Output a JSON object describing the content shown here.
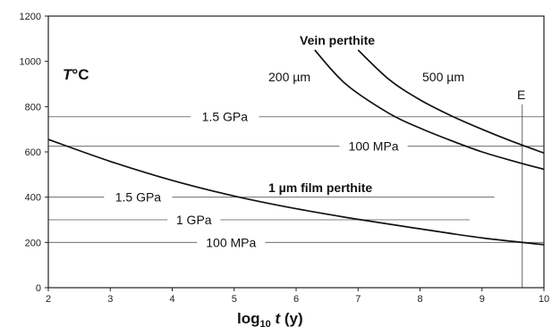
{
  "chart_data": {
    "type": "line",
    "xlabel": {
      "pre": "log",
      "sub": "10",
      "var": "t",
      "post": " (y)"
    },
    "ylabel": {
      "var": "T",
      "post": "°C"
    },
    "xlim": [
      2,
      10
    ],
    "ylim": [
      0,
      1200
    ],
    "xticks": [
      2,
      3,
      4,
      5,
      6,
      7,
      8,
      9,
      10
    ],
    "yticks": [
      0,
      200,
      400,
      600,
      800,
      1000,
      1200
    ],
    "grid": false,
    "series": [
      {
        "name": "1 µm film perthite",
        "x": [
          2,
          3,
          4,
          5,
          6,
          7,
          8,
          9,
          10
        ],
        "y": [
          655,
          558,
          474,
          405,
          349,
          302,
          260,
          220,
          190
        ]
      },
      {
        "name": "200 µm",
        "x": [
          6.3,
          6.8,
          7.5,
          8,
          8.5,
          9,
          9.5,
          10
        ],
        "y": [
          1050,
          900,
          770,
          705,
          650,
          600,
          560,
          523
        ]
      },
      {
        "name": "500 µm",
        "x": [
          7.0,
          7.5,
          8,
          8.5,
          9,
          9.5,
          10
        ],
        "y": [
          1050,
          920,
          830,
          760,
          700,
          645,
          595
        ]
      }
    ],
    "curve_title": "Vein perthite",
    "reference_lines": [
      {
        "label": "1.5 GPa",
        "y": 755,
        "x_start": 2,
        "x_end": 10
      },
      {
        "label": "100 MPa",
        "y": 625,
        "x_start": 2,
        "x_end": 10
      },
      {
        "label": "1.5 GPa",
        "y": 400,
        "x_start": 2,
        "x_end": 9.2
      },
      {
        "label": "1 GPa",
        "y": 300,
        "x_start": 2,
        "x_end": 8.8
      },
      {
        "label": "100 MPa",
        "y": 200,
        "x_start": 2,
        "x_end": 10
      }
    ],
    "vertical_line": {
      "label": "E",
      "x": 9.65,
      "y_top": 810
    }
  }
}
